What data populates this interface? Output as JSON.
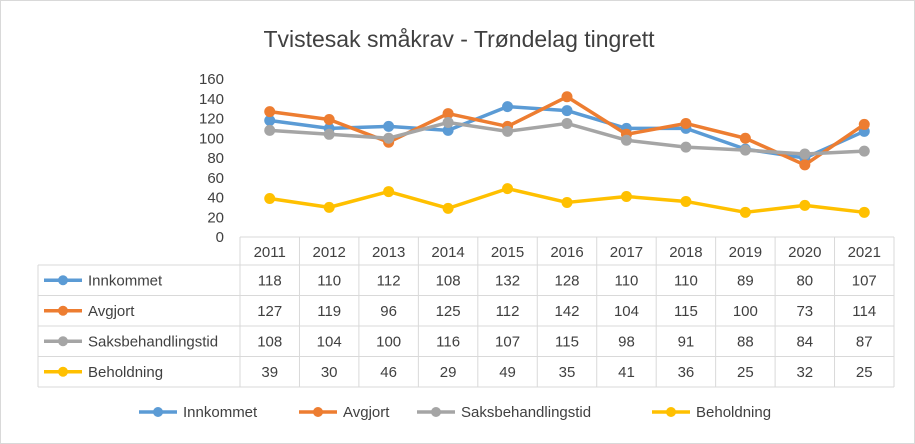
{
  "chart_data": {
    "type": "line",
    "title": "Tvistesak småkrav - Trøndelag tingrett",
    "categories": [
      "2011",
      "2012",
      "2013",
      "2014",
      "2015",
      "2016",
      "2017",
      "2018",
      "2019",
      "2020",
      "2021"
    ],
    "ylim": [
      0,
      160
    ],
    "yticks": [
      0,
      20,
      40,
      60,
      80,
      100,
      120,
      140,
      160
    ],
    "grid": false,
    "data_table": true,
    "legend_position": "bottom",
    "series": [
      {
        "name": "Innkommet",
        "color": "#5b9bd5",
        "values": [
          118,
          110,
          112,
          108,
          132,
          128,
          110,
          110,
          89,
          80,
          107
        ]
      },
      {
        "name": "Avgjort",
        "color": "#ed7d31",
        "values": [
          127,
          119,
          96,
          125,
          112,
          142,
          104,
          115,
          100,
          73,
          114
        ]
      },
      {
        "name": "Saksbehandlingstid",
        "color": "#a5a5a5",
        "values": [
          108,
          104,
          100,
          116,
          107,
          115,
          98,
          91,
          88,
          84,
          87
        ]
      },
      {
        "name": "Beholdning",
        "color": "#ffc000",
        "values": [
          39,
          30,
          46,
          29,
          49,
          35,
          41,
          36,
          25,
          32,
          25
        ]
      }
    ]
  }
}
